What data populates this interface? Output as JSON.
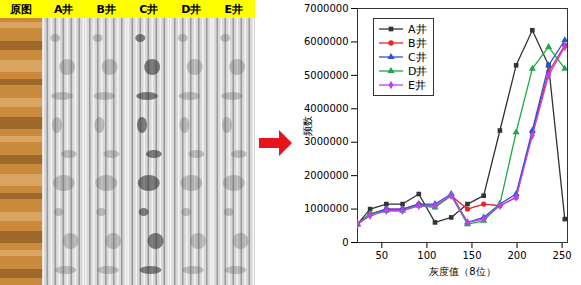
{
  "image_panel": {
    "labels": [
      "原图",
      "A井",
      "B井",
      "C井",
      "D井",
      "E井"
    ]
  },
  "chart_data": {
    "type": "line",
    "xlabel": "灰度值（8位）",
    "ylabel": "频数",
    "x": [
      23,
      37,
      55,
      73,
      91,
      109,
      127,
      145,
      163,
      181,
      199,
      217,
      235,
      253
    ],
    "series": [
      {
        "name": "A井",
        "color": "#333333",
        "marker": "square",
        "values": [
          550000,
          1000000,
          1150000,
          1150000,
          1450000,
          600000,
          750000,
          1150000,
          1400000,
          3350000,
          5300000,
          6350000,
          5300000,
          700000
        ]
      },
      {
        "name": "B井",
        "color": "#e8232a",
        "marker": "circle",
        "values": [
          550000,
          850000,
          1000000,
          1000000,
          1150000,
          1100000,
          1400000,
          1000000,
          1150000,
          1100000,
          1350000,
          3300000,
          5100000,
          5900000
        ]
      },
      {
        "name": "C井",
        "color": "#2456d8",
        "marker": "triangle",
        "values": [
          550000,
          850000,
          1000000,
          1000000,
          1150000,
          1150000,
          1450000,
          600000,
          750000,
          1150000,
          1450000,
          3350000,
          5300000,
          6050000
        ]
      },
      {
        "name": "D井",
        "color": "#1fa84a",
        "marker": "triangle",
        "values": [
          550000,
          850000,
          950000,
          950000,
          1100000,
          1050000,
          1400000,
          550000,
          650000,
          1150000,
          3300000,
          5200000,
          5850000,
          5200000
        ]
      },
      {
        "name": "E井",
        "color": "#c040f0",
        "marker": "diamond",
        "values": [
          550000,
          800000,
          950000,
          950000,
          1100000,
          1100000,
          1400000,
          600000,
          700000,
          1100000,
          1350000,
          3200000,
          5000000,
          5850000
        ]
      }
    ],
    "xlim": [
      23,
      256
    ],
    "xticks": [
      50,
      100,
      150,
      200,
      250
    ],
    "ylim": [
      0,
      7000000
    ],
    "yticks": [
      0,
      1000000,
      2000000,
      3000000,
      4000000,
      5000000,
      6000000,
      7000000
    ],
    "legend": "upper left",
    "grid": false
  }
}
